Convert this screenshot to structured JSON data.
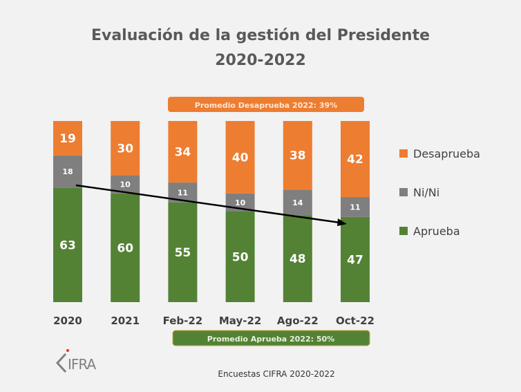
{
  "chart_data": {
    "type": "bar",
    "stacked": true,
    "title": "Evaluación de la gestión del Presidente",
    "subtitle": "2020-2022",
    "categories": [
      "2020",
      "2021",
      "Feb-22",
      "May-22",
      "Ago-22",
      "Oct-22"
    ],
    "series": [
      {
        "name": "Aprueba",
        "color": "#548235",
        "values": [
          63,
          60,
          55,
          50,
          48,
          47
        ]
      },
      {
        "name": "Ni/Ni",
        "color": "#7f7f7f",
        "values": [
          18,
          10,
          11,
          10,
          14,
          11
        ]
      },
      {
        "name": "Desaprueba",
        "color": "#ed7d31",
        "values": [
          19,
          30,
          34,
          40,
          38,
          42
        ]
      }
    ],
    "legend_order": [
      "Desaprueba",
      "Ni/Ni",
      "Aprueba"
    ],
    "legend_position": "right",
    "ylim": [
      0,
      100
    ],
    "annotations": {
      "desaprueba_avg": "Promedio Desaprueba 2022: 39%",
      "aprueba_avg": "Promedio Aprueba 2022: 50%"
    },
    "trend_arrow": "decreasing approval from 2020 to Oct-22"
  },
  "footer": {
    "logo": "CIFRA",
    "source": "Encuestas CIFRA 2020-2022"
  }
}
